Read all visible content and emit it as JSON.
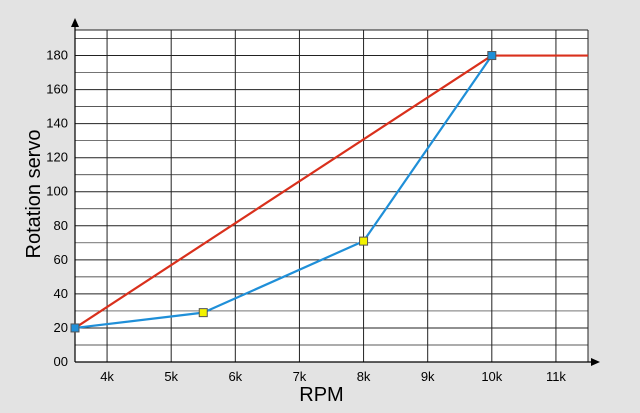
{
  "chart_data": {
    "type": "line",
    "title": "",
    "xlabel": "RPM",
    "ylabel": "Rotation servo",
    "xlim": [
      3500,
      11500
    ],
    "ylim": [
      0,
      195
    ],
    "grid": true,
    "legend": "none",
    "x_ticks": [
      {
        "value": 4000,
        "label": "4k"
      },
      {
        "value": 5000,
        "label": "5k"
      },
      {
        "value": 6000,
        "label": "6k"
      },
      {
        "value": 7000,
        "label": "7k"
      },
      {
        "value": 8000,
        "label": "8k"
      },
      {
        "value": 9000,
        "label": "9k"
      },
      {
        "value": 10000,
        "label": "10k"
      },
      {
        "value": 11000,
        "label": "11k"
      }
    ],
    "y_ticks": [
      {
        "value": 0,
        "label": "00"
      },
      {
        "value": 20,
        "label": "20"
      },
      {
        "value": 40,
        "label": "40"
      },
      {
        "value": 60,
        "label": "60"
      },
      {
        "value": 80,
        "label": "80"
      },
      {
        "value": 100,
        "label": "100"
      },
      {
        "value": 120,
        "label": "120"
      },
      {
        "value": 140,
        "label": "140"
      },
      {
        "value": 160,
        "label": "160"
      },
      {
        "value": 180,
        "label": "180"
      }
    ],
    "series": [
      {
        "color": "#d9301c",
        "x": [
          3500,
          10000,
          11500
        ],
        "y": [
          20,
          180,
          180
        ],
        "markers": []
      },
      {
        "color": "#1f8fd8",
        "x": [
          3500,
          5500,
          8000,
          10000
        ],
        "y": [
          20,
          29,
          71,
          180
        ],
        "markers": [
          "#1f8fd8",
          "#f2f200",
          "#f2f200",
          "#1f8fd8"
        ]
      }
    ],
    "colors": {
      "background": "#e3e3e3",
      "plot_background": "#ffffff",
      "grid": "#222222",
      "axis": "#000000",
      "marker_stroke": "#555555"
    }
  }
}
